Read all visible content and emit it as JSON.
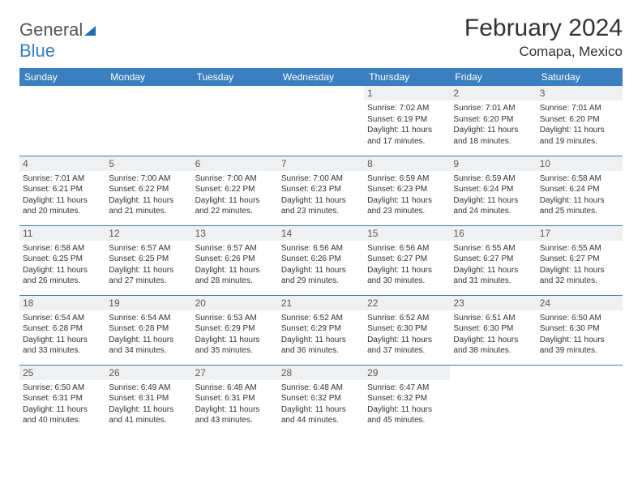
{
  "brand": {
    "name_part1": "General",
    "name_part2": "Blue"
  },
  "title": "February 2024",
  "location": "Comapa, Mexico",
  "colors": {
    "header_bg": "#3a7fbf",
    "header_text": "#ffffff",
    "border": "#3a7fbf",
    "daynum_bg": "#eef0f2",
    "daynum_text": "#5a5a5a",
    "body_text": "#333333",
    "logo_gray": "#555555",
    "logo_blue": "#3a7fbf"
  },
  "fonts": {
    "title_pt": 30,
    "location_pt": 17,
    "th_pt": 12,
    "cell_pt": 10,
    "daynum_pt": 12
  },
  "layout": {
    "columns": 7,
    "rows": 5,
    "start_weekday": "Sunday",
    "first_day_column_index": 4
  },
  "weekdays": [
    "Sunday",
    "Monday",
    "Tuesday",
    "Wednesday",
    "Thursday",
    "Friday",
    "Saturday"
  ],
  "days": [
    {
      "n": 1,
      "sunrise": "7:02 AM",
      "sunset": "6:19 PM",
      "daylight": "11 hours and 17 minutes."
    },
    {
      "n": 2,
      "sunrise": "7:01 AM",
      "sunset": "6:20 PM",
      "daylight": "11 hours and 18 minutes."
    },
    {
      "n": 3,
      "sunrise": "7:01 AM",
      "sunset": "6:20 PM",
      "daylight": "11 hours and 19 minutes."
    },
    {
      "n": 4,
      "sunrise": "7:01 AM",
      "sunset": "6:21 PM",
      "daylight": "11 hours and 20 minutes."
    },
    {
      "n": 5,
      "sunrise": "7:00 AM",
      "sunset": "6:22 PM",
      "daylight": "11 hours and 21 minutes."
    },
    {
      "n": 6,
      "sunrise": "7:00 AM",
      "sunset": "6:22 PM",
      "daylight": "11 hours and 22 minutes."
    },
    {
      "n": 7,
      "sunrise": "7:00 AM",
      "sunset": "6:23 PM",
      "daylight": "11 hours and 23 minutes."
    },
    {
      "n": 8,
      "sunrise": "6:59 AM",
      "sunset": "6:23 PM",
      "daylight": "11 hours and 23 minutes."
    },
    {
      "n": 9,
      "sunrise": "6:59 AM",
      "sunset": "6:24 PM",
      "daylight": "11 hours and 24 minutes."
    },
    {
      "n": 10,
      "sunrise": "6:58 AM",
      "sunset": "6:24 PM",
      "daylight": "11 hours and 25 minutes."
    },
    {
      "n": 11,
      "sunrise": "6:58 AM",
      "sunset": "6:25 PM",
      "daylight": "11 hours and 26 minutes."
    },
    {
      "n": 12,
      "sunrise": "6:57 AM",
      "sunset": "6:25 PM",
      "daylight": "11 hours and 27 minutes."
    },
    {
      "n": 13,
      "sunrise": "6:57 AM",
      "sunset": "6:26 PM",
      "daylight": "11 hours and 28 minutes."
    },
    {
      "n": 14,
      "sunrise": "6:56 AM",
      "sunset": "6:26 PM",
      "daylight": "11 hours and 29 minutes."
    },
    {
      "n": 15,
      "sunrise": "6:56 AM",
      "sunset": "6:27 PM",
      "daylight": "11 hours and 30 minutes."
    },
    {
      "n": 16,
      "sunrise": "6:55 AM",
      "sunset": "6:27 PM",
      "daylight": "11 hours and 31 minutes."
    },
    {
      "n": 17,
      "sunrise": "6:55 AM",
      "sunset": "6:27 PM",
      "daylight": "11 hours and 32 minutes."
    },
    {
      "n": 18,
      "sunrise": "6:54 AM",
      "sunset": "6:28 PM",
      "daylight": "11 hours and 33 minutes."
    },
    {
      "n": 19,
      "sunrise": "6:54 AM",
      "sunset": "6:28 PM",
      "daylight": "11 hours and 34 minutes."
    },
    {
      "n": 20,
      "sunrise": "6:53 AM",
      "sunset": "6:29 PM",
      "daylight": "11 hours and 35 minutes."
    },
    {
      "n": 21,
      "sunrise": "6:52 AM",
      "sunset": "6:29 PM",
      "daylight": "11 hours and 36 minutes."
    },
    {
      "n": 22,
      "sunrise": "6:52 AM",
      "sunset": "6:30 PM",
      "daylight": "11 hours and 37 minutes."
    },
    {
      "n": 23,
      "sunrise": "6:51 AM",
      "sunset": "6:30 PM",
      "daylight": "11 hours and 38 minutes."
    },
    {
      "n": 24,
      "sunrise": "6:50 AM",
      "sunset": "6:30 PM",
      "daylight": "11 hours and 39 minutes."
    },
    {
      "n": 25,
      "sunrise": "6:50 AM",
      "sunset": "6:31 PM",
      "daylight": "11 hours and 40 minutes."
    },
    {
      "n": 26,
      "sunrise": "6:49 AM",
      "sunset": "6:31 PM",
      "daylight": "11 hours and 41 minutes."
    },
    {
      "n": 27,
      "sunrise": "6:48 AM",
      "sunset": "6:31 PM",
      "daylight": "11 hours and 43 minutes."
    },
    {
      "n": 28,
      "sunrise": "6:48 AM",
      "sunset": "6:32 PM",
      "daylight": "11 hours and 44 minutes."
    },
    {
      "n": 29,
      "sunrise": "6:47 AM",
      "sunset": "6:32 PM",
      "daylight": "11 hours and 45 minutes."
    }
  ],
  "labels": {
    "sunrise": "Sunrise:",
    "sunset": "Sunset:",
    "daylight": "Daylight:"
  }
}
